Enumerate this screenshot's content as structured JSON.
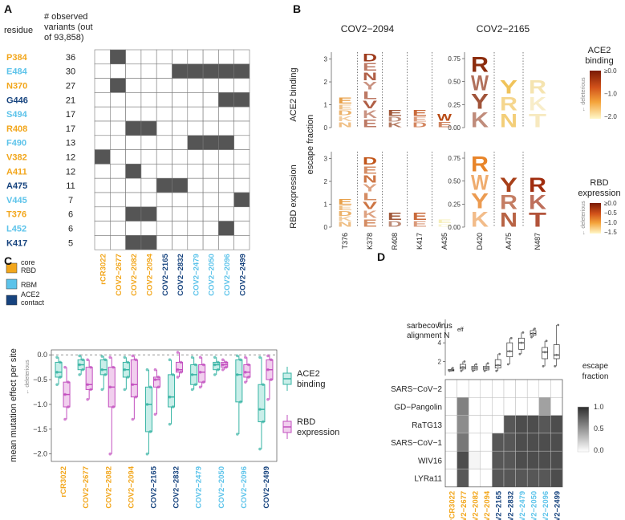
{
  "colors": {
    "core": "#f2a61b",
    "rbm": "#5cc3ea",
    "contact": "#16437e",
    "gray": "#555555",
    "teal": "#37b4a4",
    "tealFill": "#c9eee9",
    "magenta": "#c24fbf",
    "magentaFill": "#f1cfee"
  },
  "panel_labels": [
    "A",
    "B",
    "C",
    "D"
  ],
  "panelA": {
    "col_residue": "residue",
    "col_observed": [
      "# observed",
      "variants (out",
      "of 93,858)"
    ],
    "rows": [
      {
        "residue": "P384",
        "count": "36",
        "cat": "core"
      },
      {
        "residue": "E484",
        "count": "30",
        "cat": "rbm"
      },
      {
        "residue": "N370",
        "count": "27",
        "cat": "core"
      },
      {
        "residue": "G446",
        "count": "21",
        "cat": "contact"
      },
      {
        "residue": "S494",
        "count": "17",
        "cat": "rbm"
      },
      {
        "residue": "R408",
        "count": "17",
        "cat": "core"
      },
      {
        "residue": "F490",
        "count": "13",
        "cat": "rbm"
      },
      {
        "residue": "V382",
        "count": "12",
        "cat": "core"
      },
      {
        "residue": "A411",
        "count": "12",
        "cat": "core"
      },
      {
        "residue": "A475",
        "count": "11",
        "cat": "contact"
      },
      {
        "residue": "V445",
        "count": "7",
        "cat": "rbm"
      },
      {
        "residue": "T376",
        "count": "6",
        "cat": "core"
      },
      {
        "residue": "L452",
        "count": "6",
        "cat": "rbm"
      },
      {
        "residue": "K417",
        "count": "5",
        "cat": "contact"
      }
    ],
    "antibodies": [
      {
        "name": "rCR3022",
        "cat": "core"
      },
      {
        "name": "COV2−2677",
        "cat": "core"
      },
      {
        "name": "COV2−2082",
        "cat": "core"
      },
      {
        "name": "COV2−2094",
        "cat": "core"
      },
      {
        "name": "COV2−2165",
        "cat": "contact"
      },
      {
        "name": "COV2−2832",
        "cat": "contact"
      },
      {
        "name": "COV2−2479",
        "cat": "rbm"
      },
      {
        "name": "COV2−2050",
        "cat": "rbm"
      },
      {
        "name": "COV2−2096",
        "cat": "rbm"
      },
      {
        "name": "COV2−2499",
        "cat": "contact"
      }
    ],
    "filled": [
      [
        0,
        1
      ],
      [
        1,
        5
      ],
      [
        1,
        6
      ],
      [
        1,
        7
      ],
      [
        1,
        8
      ],
      [
        1,
        9
      ],
      [
        2,
        1
      ],
      [
        3,
        8
      ],
      [
        3,
        9
      ],
      [
        5,
        2
      ],
      [
        5,
        3
      ],
      [
        6,
        6
      ],
      [
        6,
        7
      ],
      [
        6,
        8
      ],
      [
        7,
        0
      ],
      [
        8,
        2
      ],
      [
        9,
        4
      ],
      [
        9,
        5
      ],
      [
        10,
        9
      ],
      [
        11,
        2
      ],
      [
        11,
        3
      ],
      [
        12,
        8
      ],
      [
        13,
        2
      ],
      [
        13,
        3
      ]
    ],
    "legend": [
      {
        "label": [
          "core",
          "RBD"
        ],
        "cat": "core"
      },
      {
        "label": [
          "RBM"
        ],
        "cat": "rbm"
      },
      {
        "label": [
          "ACE2",
          "contact"
        ],
        "cat": "contact"
      }
    ]
  },
  "panelB": {
    "antibody_titles": [
      "COV2−2094",
      "COV2−2165"
    ],
    "row_labels": [
      "ACE2 binding",
      "RBD expression"
    ],
    "y_axis_label": "escape fraction",
    "left_ticks": [
      "0",
      "1",
      "2",
      "3"
    ],
    "right_ticks": [
      "0.00",
      "0.25",
      "0.50",
      "0.75"
    ],
    "left_sites": [
      "T376",
      "K378",
      "R408",
      "K417",
      "A435"
    ],
    "right_sites": [
      "D420",
      "A475",
      "N487"
    ],
    "legend_ace2": {
      "title": [
        "ACE2",
        "binding"
      ],
      "ticks": [
        "≥0.0",
        "−1.0",
        "−2.0"
      ],
      "arrow": "deleterious"
    },
    "legend_rbd": {
      "title": [
        "RBD",
        "expression"
      ],
      "ticks": [
        "≥0.0",
        "−0.5",
        "−1.0",
        "−1.5"
      ],
      "arrow": "deleterious"
    },
    "logo_top_left": [
      {
        "top": "E",
        "h": 1.3,
        "color": "#e8a04a"
      },
      {
        "top": "D",
        "h": 3.3,
        "color": "#9e3b1c",
        "letters": "DENYLVKE"
      },
      {
        "top": "",
        "h": 0.75,
        "color": "#a0583a"
      },
      {
        "top": "E",
        "h": 0.75,
        "color": "#c96a3b"
      },
      {
        "top": "W",
        "h": 0.55,
        "color": "#b84a14"
      }
    ],
    "logo_top_right": [
      {
        "letters": "RWYK",
        "h": 0.8,
        "color": "#8c2d0e"
      },
      {
        "letters": "YRN",
        "h": 0.55,
        "color": "#f0c35a"
      },
      {
        "letters": "RKT",
        "h": 0.55,
        "color": "#f5e4b0"
      }
    ],
    "logo_bot_left": [
      {
        "top": "E",
        "h": 1.2,
        "color": "#e8a04a"
      },
      {
        "top": "D",
        "h": 3.1,
        "color": "#c2561a",
        "letters": "DENYLVKE"
      },
      {
        "top": "",
        "h": 0.6,
        "color": "#a0583a"
      },
      {
        "top": "E",
        "h": 0.6,
        "color": "#c96a3b"
      },
      {
        "top": "",
        "h": 0.3,
        "color": "#f6efb8"
      }
    ],
    "logo_bot_right": [
      {
        "letters": "RWYK",
        "h": 0.8,
        "color": "#e8852a"
      },
      {
        "letters": "YRN",
        "h": 0.57,
        "color": "#a8401a"
      },
      {
        "letters": "RKT",
        "h": 0.57,
        "color": "#a02c0e"
      }
    ]
  },
  "panelC": {
    "ylabel": "mean mutation effect per site",
    "deleterious": "deleterious",
    "yticks": [
      "0.0",
      "−0.5",
      "−1.0",
      "−1.5",
      "−2.0"
    ],
    "legend": [
      {
        "label": [
          "ACE2",
          "binding"
        ],
        "key": "ace2"
      },
      {
        "label": [
          "RBD",
          "expression"
        ],
        "key": "rbd"
      }
    ]
  },
  "chart_data": [
    {
      "type": "box",
      "title": "C",
      "ylabel": "mean mutation effect per site",
      "ylim": [
        -2.15,
        0.1
      ],
      "categories": [
        "rCR3022",
        "COV2−2677",
        "COV2−2082",
        "COV2−2094",
        "COV2−2165",
        "COV2−2832",
        "COV2−2479",
        "COV2−2050",
        "COV2−2096",
        "COV2−2499"
      ],
      "series": [
        {
          "name": "ACE2 binding",
          "boxes": [
            {
              "q1": -0.45,
              "med": -0.35,
              "q3": -0.15,
              "lo": -0.6,
              "hi": -0.05
            },
            {
              "q1": -0.3,
              "med": -0.2,
              "q3": -0.1,
              "lo": -0.4,
              "hi": -0.02
            },
            {
              "q1": -0.4,
              "med": -0.3,
              "q3": -0.1,
              "lo": -0.7,
              "hi": -0.03
            },
            {
              "q1": -0.45,
              "med": -0.3,
              "q3": -0.15,
              "lo": -0.7,
              "hi": -0.05
            },
            {
              "q1": -1.55,
              "med": -1.0,
              "q3": -0.65,
              "lo": -2.0,
              "hi": -0.3
            },
            {
              "q1": -1.05,
              "med": -0.85,
              "q3": -0.4,
              "lo": -1.4,
              "hi": -0.1
            },
            {
              "q1": -0.6,
              "med": -0.4,
              "q3": -0.2,
              "lo": -0.7,
              "hi": -0.05
            },
            {
              "q1": -0.3,
              "med": -0.2,
              "q3": -0.15,
              "lo": -0.4,
              "hi": -0.05
            },
            {
              "q1": -0.95,
              "med": -0.4,
              "q3": -0.1,
              "lo": -1.6,
              "hi": -0.02
            },
            {
              "q1": -1.35,
              "med": -1.1,
              "q3": -0.6,
              "lo": -1.9,
              "hi": -0.05
            }
          ]
        },
        {
          "name": "RBD expression",
          "boxes": [
            {
              "q1": -1.05,
              "med": -0.8,
              "q3": -0.55,
              "lo": -1.3,
              "hi": -0.25
            },
            {
              "q1": -0.7,
              "med": -0.6,
              "q3": -0.25,
              "lo": -0.9,
              "hi": -0.1
            },
            {
              "q1": -1.05,
              "med": -0.65,
              "q3": -0.25,
              "lo": -2.0,
              "hi": -0.05
            },
            {
              "q1": -0.85,
              "med": -0.6,
              "q3": -0.1,
              "lo": -1.3,
              "hi": -0.02
            },
            {
              "q1": -0.65,
              "med": -0.5,
              "q3": -0.45,
              "lo": -1.2,
              "hi": -0.3
            },
            {
              "q1": -0.35,
              "med": -0.3,
              "q3": -0.15,
              "lo": -0.45,
              "hi": 0.05
            },
            {
              "q1": -0.55,
              "med": -0.35,
              "q3": -0.2,
              "lo": -0.65,
              "hi": -0.05
            },
            {
              "q1": -0.25,
              "med": -0.2,
              "q3": -0.15,
              "lo": -0.3,
              "hi": -0.1
            },
            {
              "q1": -0.45,
              "med": -0.35,
              "q3": -0.2,
              "lo": -0.55,
              "hi": -0.05
            },
            {
              "q1": -0.5,
              "med": -0.3,
              "q3": -0.1,
              "lo": -0.9,
              "hi": -0.02
            }
          ]
        }
      ]
    },
    {
      "type": "box",
      "title": "D top",
      "ylabel": "sarbecovirus alignment Neff",
      "ylim": [
        0.5,
        6.5
      ],
      "yticks": [
        "2",
        "4",
        "6"
      ],
      "categories": [
        "rCR3022",
        "COV2−2677",
        "COV2−2082",
        "COV2−2094",
        "COV2−2165",
        "COV2−2832",
        "COV2−2479",
        "COV2−2050",
        "COV2−2096",
        "COV2−2499"
      ],
      "boxes": [
        {
          "q1": 1.0,
          "med": 1.05,
          "q3": 1.15,
          "lo": 1.0,
          "hi": 1.3
        },
        {
          "q1": 1.2,
          "med": 1.4,
          "q3": 1.7,
          "lo": 1.0,
          "hi": 2.0
        },
        {
          "q1": 1.1,
          "med": 1.3,
          "q3": 1.5,
          "lo": 1.0,
          "hi": 1.7
        },
        {
          "q1": 1.1,
          "med": 1.3,
          "q3": 1.5,
          "lo": 1.0,
          "hi": 1.8
        },
        {
          "q1": 1.3,
          "med": 1.6,
          "q3": 2.2,
          "lo": 1.0,
          "hi": 2.8
        },
        {
          "q1": 2.5,
          "med": 3.1,
          "q3": 4.0,
          "lo": 1.7,
          "hi": 4.5
        },
        {
          "q1": 3.3,
          "med": 4.0,
          "q3": 4.5,
          "lo": 2.8,
          "hi": 5.1
        },
        {
          "q1": 4.8,
          "med": 5.0,
          "q3": 5.3,
          "lo": 4.6,
          "hi": 5.5
        },
        {
          "q1": 2.3,
          "med": 3.0,
          "q3": 3.5,
          "lo": 1.5,
          "hi": 4.2
        },
        {
          "q1": 2.3,
          "med": 2.7,
          "q3": 3.8,
          "lo": 1.5,
          "hi": 5.9
        }
      ]
    },
    {
      "type": "heatmap",
      "title": "D bottom",
      "rows": [
        "SARS−CoV−2",
        "GD−Pangolin",
        "RaTG13",
        "SARS−CoV−1",
        "WIV16",
        "LYRa11"
      ],
      "columns": [
        "rCR3022",
        "COV2−2677",
        "COV2−2082",
        "COV2−2094",
        "COV2−2165",
        "COV2−2832",
        "COV2−2479",
        "COV2−2050",
        "COV2−2096",
        "COV2−2499"
      ],
      "values": [
        [
          0,
          0,
          0,
          0,
          0,
          0,
          0,
          0,
          0,
          0
        ],
        [
          0,
          0.6,
          0,
          0,
          0,
          0,
          0,
          0,
          0.45,
          0
        ],
        [
          0,
          0.55,
          0,
          0,
          0,
          0.8,
          0.85,
          0.85,
          0.8,
          0.85
        ],
        [
          0,
          0.65,
          0,
          0,
          0.8,
          0.8,
          0.85,
          0.85,
          0.85,
          0.85
        ],
        [
          0,
          0.85,
          0.05,
          0,
          0.8,
          0.8,
          0.85,
          0.85,
          0.85,
          0.85
        ],
        [
          0,
          0.8,
          0,
          0,
          0.8,
          0.8,
          0.8,
          0.8,
          0.8,
          0.85
        ]
      ],
      "colorbar": {
        "title": [
          "escape",
          "fraction"
        ],
        "ticks": [
          "1.0",
          "0.5",
          "0.0"
        ]
      }
    }
  ],
  "panelD": {
    "ylabel": [
      "sarbecovirus",
      "alignment N"
    ],
    "ylabel_sub": "eff"
  }
}
